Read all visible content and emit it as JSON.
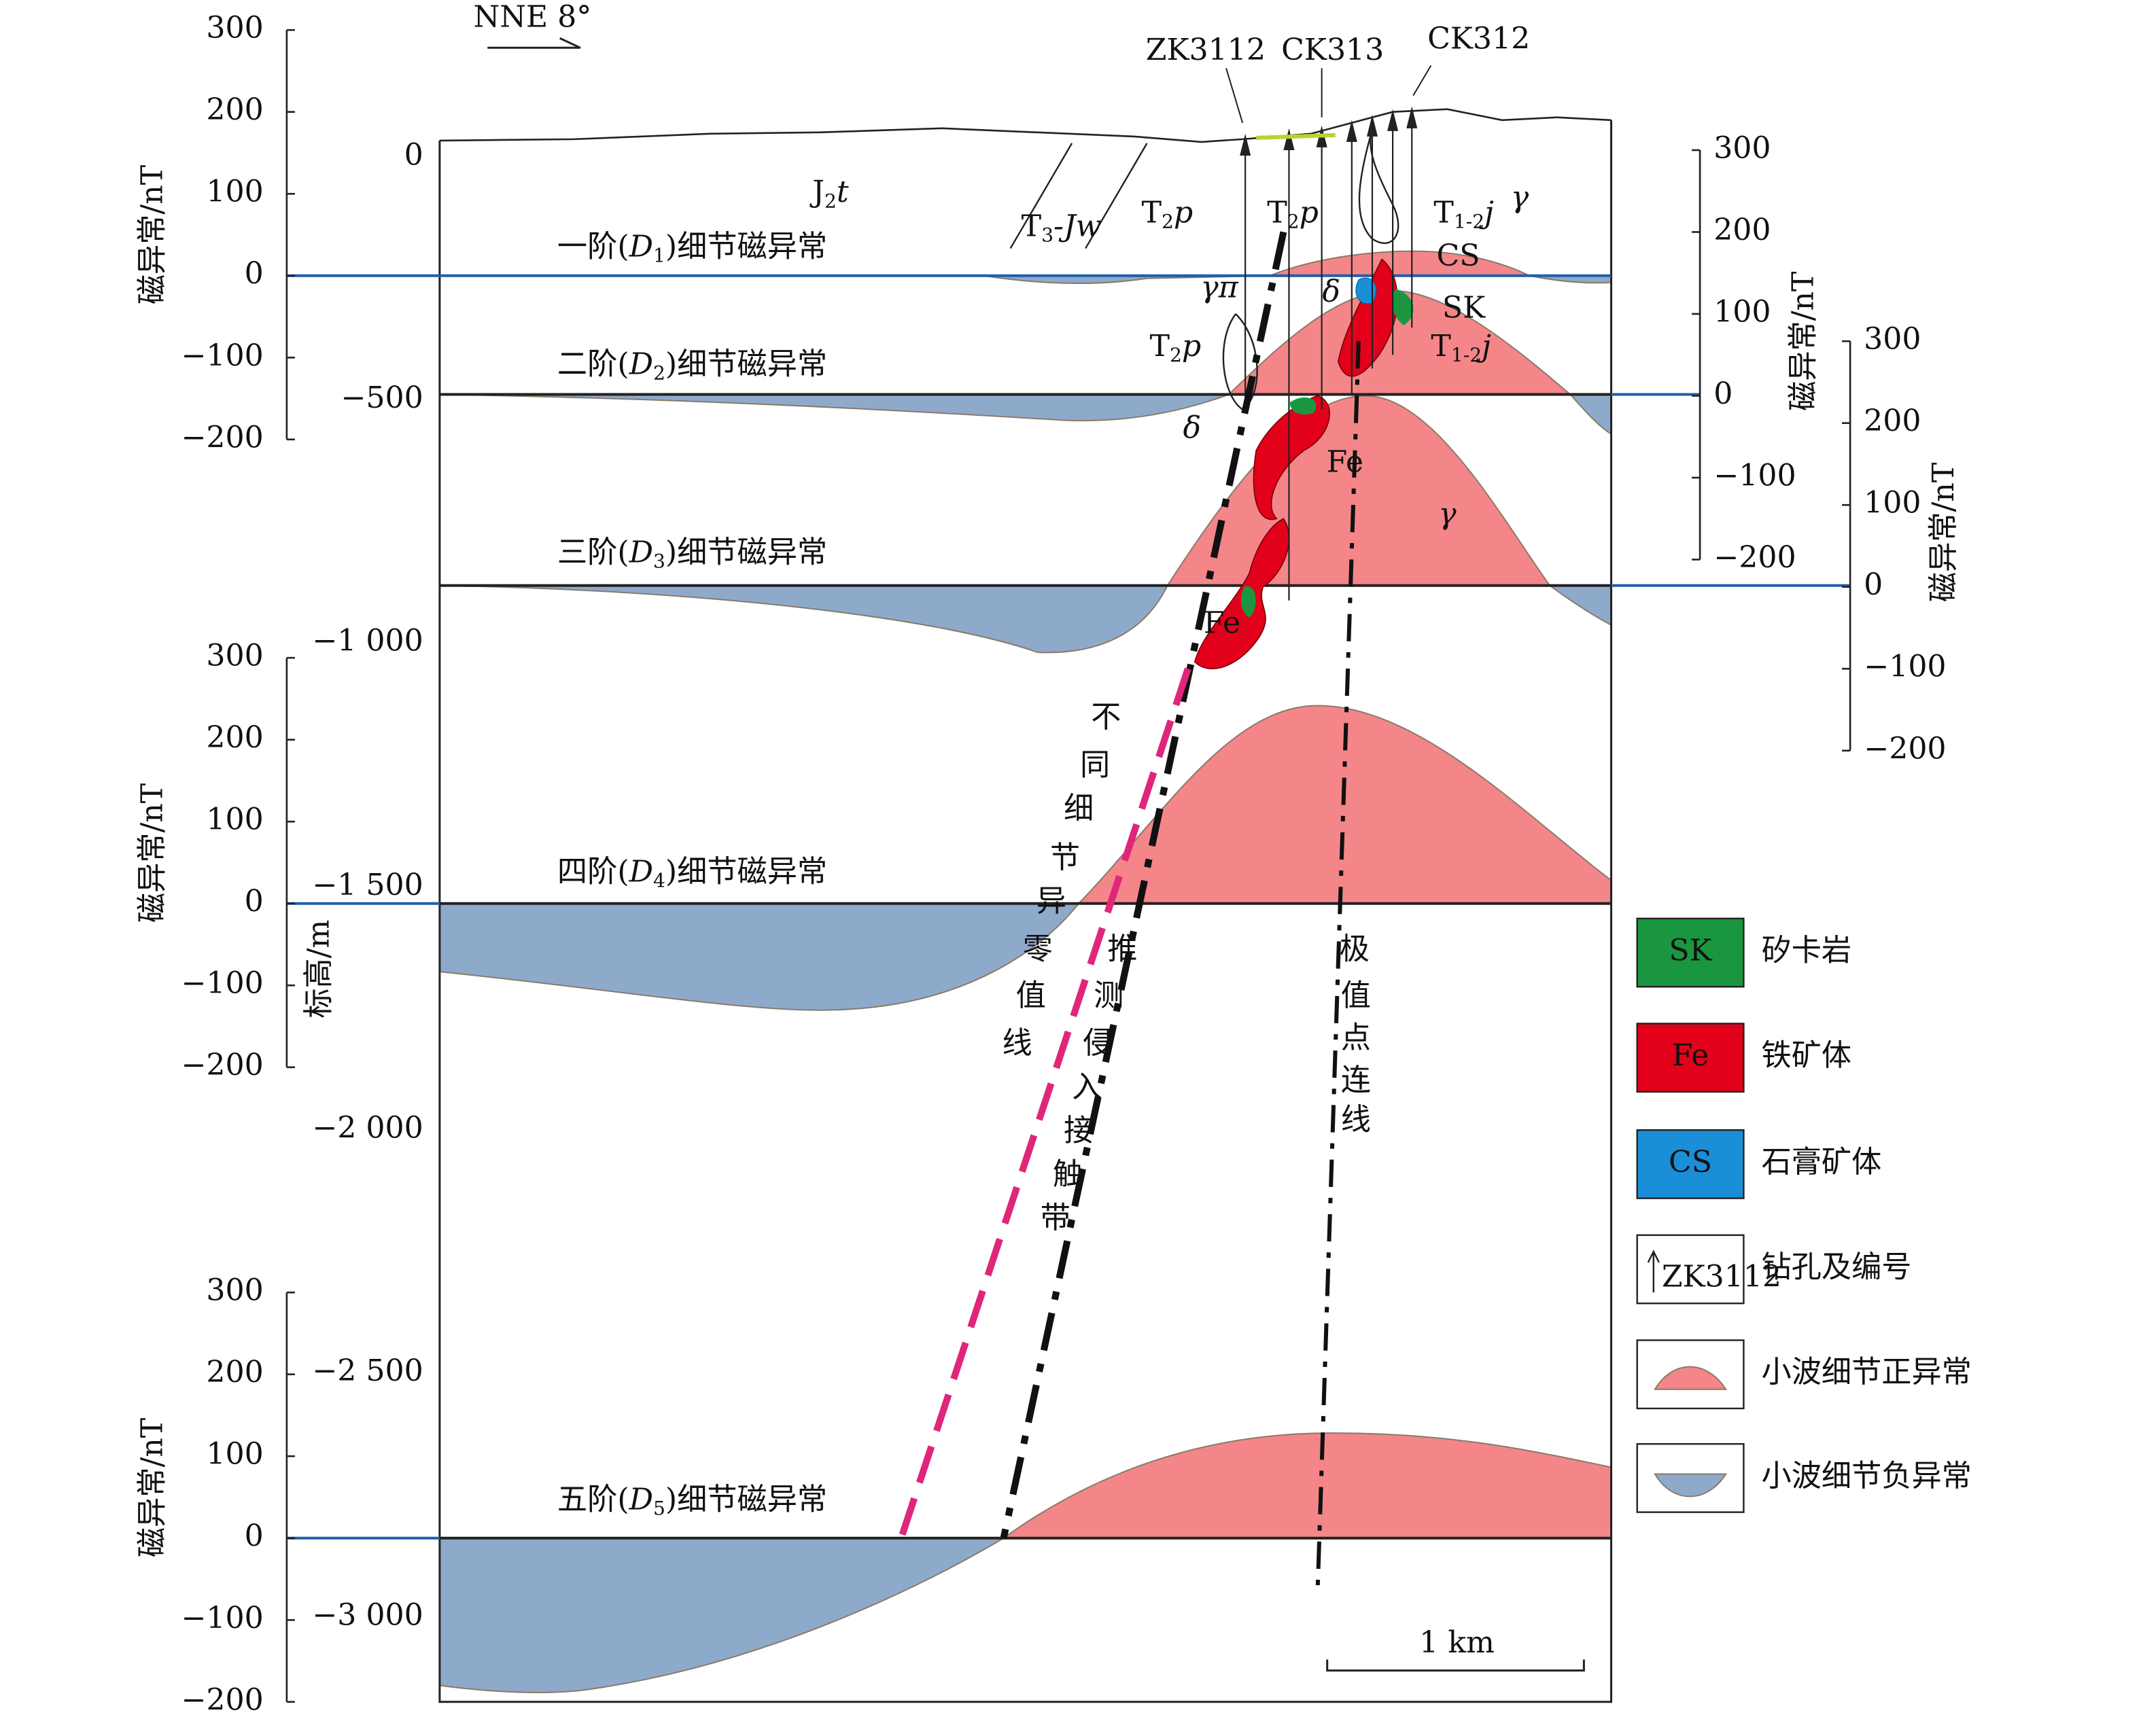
{
  "direction": "NNE 8°",
  "drill_holes": [
    "ZK3112",
    "CK313",
    "CK312"
  ],
  "elevation_axis": {
    "label": "标高/m",
    "ticks": [
      "0",
      "−500",
      "−1 000",
      "−1 500",
      "−2 000",
      "−2 500",
      "−3 000"
    ]
  },
  "anomaly_axes": [
    {
      "label": "磁异常/nT",
      "ticks": [
        "300",
        "200",
        "100",
        "0",
        "−100",
        "−200"
      ]
    },
    {
      "label": "磁异常/nT",
      "ticks": [
        "300",
        "200",
        "100",
        "0",
        "−100",
        "−200"
      ]
    },
    {
      "label": "磁异常/nT",
      "ticks": [
        "300",
        "200",
        "100",
        "0",
        "−100",
        "−200"
      ]
    },
    {
      "label": "磁异常/nT",
      "ticks": [
        "300",
        "200",
        "100",
        "0",
        "−100",
        "−200"
      ]
    },
    {
      "label": "磁异常/nT",
      "ticks": [
        "300",
        "200",
        "100",
        "0",
        "−100",
        "−200"
      ]
    }
  ],
  "anomaly_levels": [
    {
      "main": "一阶(",
      "symbol": "D",
      "sub": "1",
      "tail": ")细节磁异常"
    },
    {
      "main": "二阶(",
      "symbol": "D",
      "sub": "2",
      "tail": ")细节磁异常"
    },
    {
      "main": "三阶(",
      "symbol": "D",
      "sub": "3",
      "tail": ")细节磁异常"
    },
    {
      "main": "四阶(",
      "symbol": "D",
      "sub": "4",
      "tail": ")细节磁异常"
    },
    {
      "main": "五阶(",
      "symbol": "D",
      "sub": "5",
      "tail": ")细节磁异常"
    }
  ],
  "strata_labels": [
    {
      "main": "J",
      "sub": "2",
      "tail": "t"
    },
    {
      "main": "T",
      "sub": "3",
      "tail": "-Jw"
    },
    {
      "main": "T",
      "sub": "2",
      "tail": "p"
    },
    {
      "main": "T",
      "sub": "2",
      "tail": "p"
    },
    {
      "main": "T",
      "sub": "1-2",
      "tail": "j"
    },
    {
      "main": "T",
      "sub": "1-2",
      "tail": "j"
    },
    {
      "main": "T",
      "sub": "2",
      "tail": "p"
    }
  ],
  "rock_labels": [
    "γ",
    "CS",
    "SK",
    "γπ",
    "δ",
    "δ",
    "Fe",
    "γ",
    "Fe"
  ],
  "zero_line_label": "不同细节异零值线",
  "contact_zone_label": "推测侵入接触带",
  "extreme_line_label": "极值点连线",
  "scale_bar": "1 km",
  "legend": [
    {
      "key": "SK",
      "label": "矽卡岩"
    },
    {
      "key": "Fe",
      "label": "铁矿体"
    },
    {
      "key": "CS",
      "label": "石膏矿体"
    },
    {
      "key": "ZK3112",
      "label": "钻孔及编号"
    },
    {
      "label": "小波细节正异常"
    },
    {
      "label": "小波细节负异常"
    }
  ]
}
